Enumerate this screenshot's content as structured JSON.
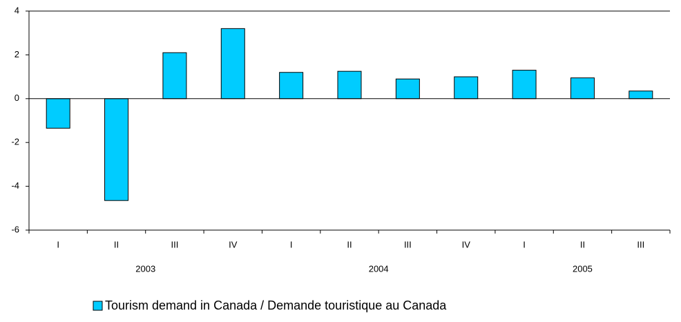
{
  "chart_data": {
    "type": "bar",
    "categories": [
      "I",
      "II",
      "III",
      "IV",
      "I",
      "II",
      "III",
      "IV",
      "I",
      "II",
      "III"
    ],
    "groups": [
      {
        "label": "2003",
        "span": 4
      },
      {
        "label": "2004",
        "span": 4
      },
      {
        "label": "2005",
        "span": 3
      }
    ],
    "series": [
      {
        "name": "Tourism demand in Canada / Demande touristique au Canada",
        "color": "#00ccff",
        "values": [
          -1.35,
          -4.65,
          2.1,
          3.2,
          1.2,
          1.25,
          0.9,
          1.0,
          1.3,
          0.95,
          0.35
        ]
      }
    ],
    "ylim": [
      -6,
      4
    ],
    "yticks": [
      -6,
      -4,
      -2,
      0,
      2,
      4
    ],
    "grid": false
  }
}
